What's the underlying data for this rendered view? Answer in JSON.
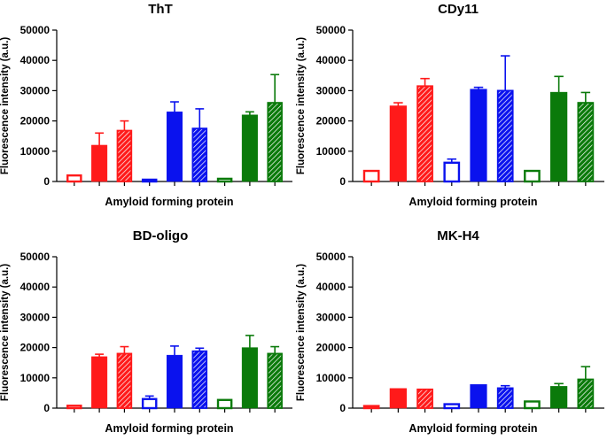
{
  "colors": {
    "red": "#ff1a1a",
    "blue": "#0a12ee",
    "green": "#0a7a0a",
    "axis": "#000000"
  },
  "chart_data": [
    {
      "type": "bar",
      "title": "ThT",
      "xlabel": "Amyloid forming protein",
      "ylabel": "Fluorescence intensity (a.u.)",
      "ylim": [
        0,
        50000
      ],
      "yticks": [
        "0",
        "10000",
        "20000",
        "30000",
        "40000",
        "50000"
      ],
      "bars": [
        {
          "color": "red",
          "style": "open",
          "value": 2000,
          "error": 0
        },
        {
          "color": "red",
          "style": "solid",
          "value": 12000,
          "error": 4000
        },
        {
          "color": "red",
          "style": "hatched",
          "value": 16800,
          "error": 3200
        },
        {
          "color": "blue",
          "style": "open",
          "value": 600,
          "error": 0
        },
        {
          "color": "blue",
          "style": "solid",
          "value": 23000,
          "error": 3300
        },
        {
          "color": "blue",
          "style": "hatched",
          "value": 17500,
          "error": 6500
        },
        {
          "color": "green",
          "style": "open",
          "value": 900,
          "error": 0
        },
        {
          "color": "green",
          "style": "solid",
          "value": 22000,
          "error": 1000
        },
        {
          "color": "green",
          "style": "hatched",
          "value": 26000,
          "error": 9300
        }
      ]
    },
    {
      "type": "bar",
      "title": "CDy11",
      "xlabel": "Amyloid forming protein",
      "ylabel": "Fluorescence intensity (a.u.)",
      "ylim": [
        0,
        50000
      ],
      "yticks": [
        "0",
        "10000",
        "20000",
        "30000",
        "40000",
        "50000"
      ],
      "bars": [
        {
          "color": "red",
          "style": "open",
          "value": 3500,
          "error": 0
        },
        {
          "color": "red",
          "style": "solid",
          "value": 25000,
          "error": 1000
        },
        {
          "color": "red",
          "style": "hatched",
          "value": 31500,
          "error": 2500
        },
        {
          "color": "blue",
          "style": "open",
          "value": 6200,
          "error": 1200
        },
        {
          "color": "blue",
          "style": "solid",
          "value": 30500,
          "error": 600
        },
        {
          "color": "blue",
          "style": "hatched",
          "value": 30000,
          "error": 11500
        },
        {
          "color": "green",
          "style": "open",
          "value": 3500,
          "error": 0
        },
        {
          "color": "green",
          "style": "solid",
          "value": 29500,
          "error": 5200
        },
        {
          "color": "green",
          "style": "hatched",
          "value": 26000,
          "error": 3400
        }
      ]
    },
    {
      "type": "bar",
      "title": "BD-oligo",
      "xlabel": "Amyloid forming protein",
      "ylabel": "Fluorescence intensity (a.u.)",
      "ylim": [
        0,
        50000
      ],
      "yticks": [
        "0",
        "10000",
        "20000",
        "30000",
        "40000",
        "50000"
      ],
      "bars": [
        {
          "color": "red",
          "style": "open",
          "value": 800,
          "error": 0
        },
        {
          "color": "red",
          "style": "solid",
          "value": 17000,
          "error": 800
        },
        {
          "color": "red",
          "style": "hatched",
          "value": 18000,
          "error": 2300
        },
        {
          "color": "blue",
          "style": "open",
          "value": 3000,
          "error": 1000
        },
        {
          "color": "blue",
          "style": "solid",
          "value": 17500,
          "error": 3000
        },
        {
          "color": "blue",
          "style": "hatched",
          "value": 18800,
          "error": 1000
        },
        {
          "color": "green",
          "style": "open",
          "value": 2700,
          "error": 0
        },
        {
          "color": "green",
          "style": "solid",
          "value": 20000,
          "error": 4000
        },
        {
          "color": "green",
          "style": "hatched",
          "value": 18000,
          "error": 2300
        }
      ]
    },
    {
      "type": "bar",
      "title": "MK-H4",
      "xlabel": "Amyloid forming protein",
      "ylabel": "Fluorescence intensity (a.u.)",
      "ylim": [
        0,
        50000
      ],
      "yticks": [
        "0",
        "10000",
        "20000",
        "30000",
        "40000",
        "50000"
      ],
      "bars": [
        {
          "color": "red",
          "style": "open",
          "value": 700,
          "error": 0
        },
        {
          "color": "red",
          "style": "solid",
          "value": 6500,
          "error": 0
        },
        {
          "color": "red",
          "style": "hatched",
          "value": 6200,
          "error": 0
        },
        {
          "color": "blue",
          "style": "open",
          "value": 1300,
          "error": 0
        },
        {
          "color": "blue",
          "style": "solid",
          "value": 7800,
          "error": 0
        },
        {
          "color": "blue",
          "style": "hatched",
          "value": 6600,
          "error": 800
        },
        {
          "color": "green",
          "style": "open",
          "value": 2200,
          "error": 0
        },
        {
          "color": "green",
          "style": "solid",
          "value": 7200,
          "error": 900
        },
        {
          "color": "green",
          "style": "hatched",
          "value": 9500,
          "error": 4200
        }
      ]
    }
  ]
}
